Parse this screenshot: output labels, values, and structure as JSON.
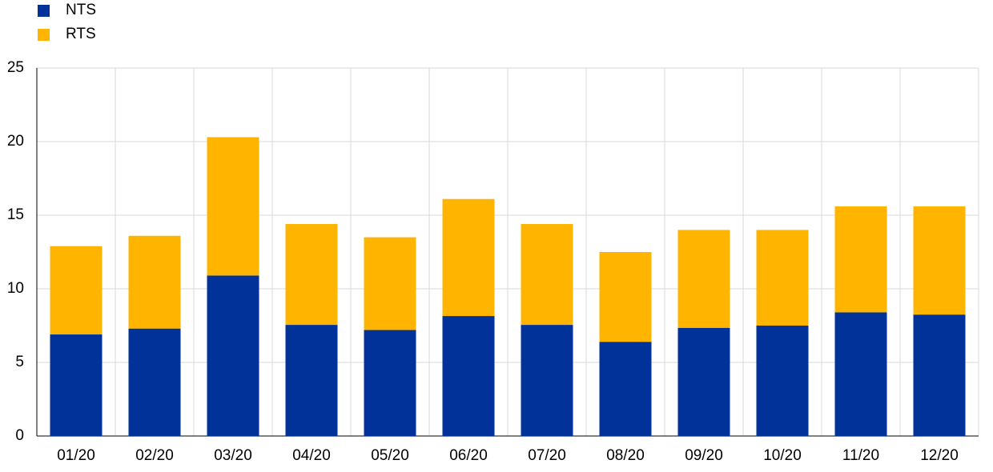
{
  "chart_data": {
    "type": "stacked_bar",
    "categories": [
      "01/20",
      "02/20",
      "03/20",
      "04/20",
      "05/20",
      "06/20",
      "07/20",
      "08/20",
      "09/20",
      "10/20",
      "11/20",
      "12/20"
    ],
    "series": [
      {
        "name": "NTS",
        "color": "#003299",
        "values": [
          6.9,
          7.3,
          10.9,
          7.55,
          7.2,
          8.15,
          7.55,
          6.4,
          7.35,
          7.5,
          8.4,
          8.25
        ]
      },
      {
        "name": "RTS",
        "color": "#ffb400",
        "values": [
          6.0,
          6.3,
          9.4,
          6.85,
          6.3,
          7.95,
          6.85,
          6.1,
          6.65,
          6.5,
          7.2,
          7.35
        ]
      }
    ],
    "ylim": [
      0,
      25
    ],
    "yticks": [
      0,
      5,
      10,
      15,
      20,
      25
    ],
    "grid": true
  }
}
